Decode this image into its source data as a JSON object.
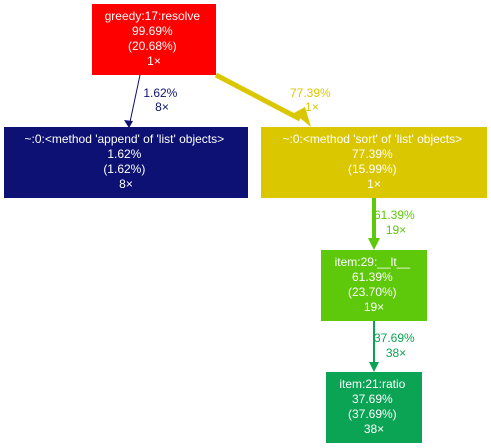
{
  "nodes": [
    {
      "id": "greedy",
      "lines": [
        "greedy:17:resolve",
        "99.69%",
        "(20.68%)",
        "1×"
      ],
      "fill": "#ff0000"
    },
    {
      "id": "append",
      "lines": [
        "~:0:<method 'append' of 'list' objects>",
        "1.62%",
        "(1.62%)",
        "8×"
      ],
      "fill": "#0d1174"
    },
    {
      "id": "sort",
      "lines": [
        "~:0:<method 'sort' of 'list' objects>",
        "77.39%",
        "(15.99%)",
        "1×"
      ],
      "fill": "#dbc700"
    },
    {
      "id": "lt",
      "lines": [
        "item:29:__lt__",
        "61.39%",
        "(23.70%)",
        "19×"
      ],
      "fill": "#5ec80a"
    },
    {
      "id": "ratio",
      "lines": [
        "item:21:ratio",
        "37.69%",
        "(37.69%)",
        "38×"
      ],
      "fill": "#0ba354"
    }
  ],
  "edges": [
    {
      "id": "greedy-append",
      "from": "greedy",
      "to": "append",
      "lines": [
        "1.62%",
        "8×"
      ],
      "color": "#0d1174"
    },
    {
      "id": "greedy-sort",
      "from": "greedy",
      "to": "sort",
      "lines": [
        "77.39%",
        "1×"
      ],
      "color": "#dbc700"
    },
    {
      "id": "sort-lt",
      "from": "sort",
      "to": "lt",
      "lines": [
        "61.39%",
        "19×"
      ],
      "color": "#5ec80a"
    },
    {
      "id": "lt-ratio",
      "from": "lt",
      "to": "ratio",
      "lines": [
        "37.69%",
        "38×"
      ],
      "color": "#0ba354"
    }
  ]
}
